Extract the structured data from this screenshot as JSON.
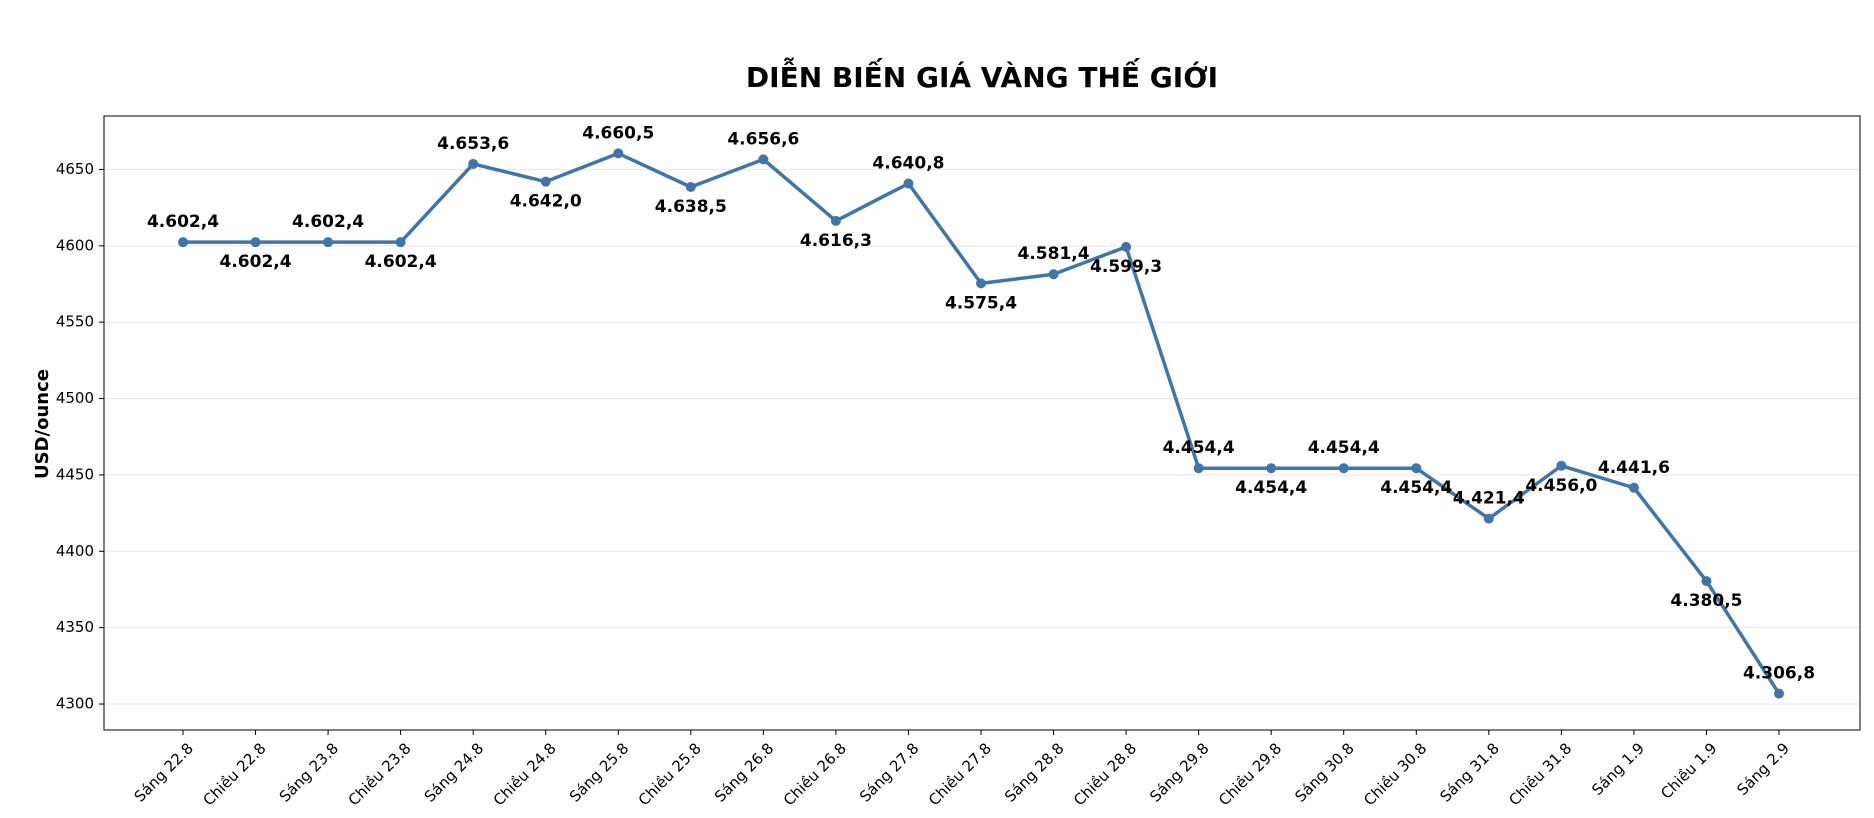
{
  "chart_data": {
    "type": "line",
    "title": "DIỄN BIẾN GIÁ VÀNG THẾ GIỚI",
    "y_label": "USD/ounce",
    "categories": [
      "Sáng 22.8",
      "Chiều 22.8",
      "Sáng 23.8",
      "Chiều 23.8",
      "Sáng 24.8",
      "Chiều 24.8",
      "Sáng 25.8",
      "Chiều 25.8",
      "Sáng 26.8",
      "Chiều 26.8",
      "Sáng 27.8",
      "Chiều 27.8",
      "Sáng 28.8",
      "Chiều 28.8",
      "Sáng 29.8",
      "Chiều 29.8",
      "Sáng 30.8",
      "Chiều 30.8",
      "Sáng 31.8",
      "Chiều 31.8",
      "Sáng 1.9",
      "Chiều 1.9",
      "Sáng 2.9"
    ],
    "values": [
      4602.4,
      4602.4,
      4602.4,
      4602.4,
      4653.6,
      4642.0,
      4660.5,
      4638.5,
      4656.6,
      4616.3,
      4640.8,
      4575.4,
      4581.4,
      4599.3,
      4454.4,
      4454.4,
      4454.4,
      4454.4,
      4421.4,
      4456.0,
      4441.6,
      4380.5,
      4306.8
    ],
    "value_labels": [
      "4.602,4",
      "4.602,4",
      "4.602,4",
      "4.602,4",
      "4.653,6",
      "4.642,0",
      "4.660,5",
      "4.638,5",
      "4.656,6",
      "4.616,3",
      "4.640,8",
      "4.575,4",
      "4.581,4",
      "4.599,3",
      "4.454,4",
      "4.454,4",
      "4.454,4",
      "4.454,4",
      "4.421,4",
      "4.456,0",
      "4.441,6",
      "4.380,5",
      "4.306,8"
    ],
    "color": "#3f75aa",
    "ylim": [
      4283,
      4685
    ],
    "yticks": [
      4300,
      4350,
      4400,
      4450,
      4500,
      4550,
      4600,
      4650
    ],
    "grid": true
  }
}
